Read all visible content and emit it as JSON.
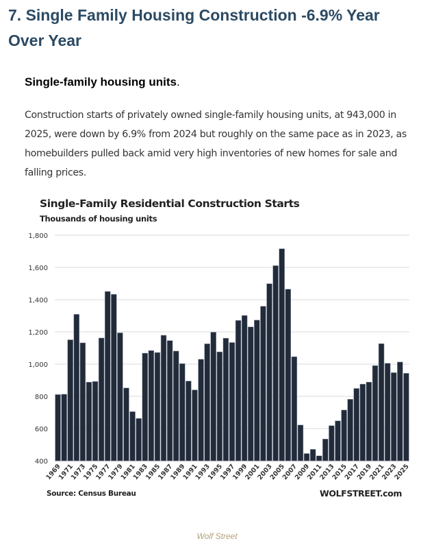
{
  "article": {
    "heading": "7. Single Family Housing Construction -6.9% Year Over Year",
    "subheading": "Single-family housing units",
    "subheading_punct": ".",
    "paragraph": "Construction starts of privately owned single-family housing units, at 943,000 in 2025, were down by 6.9% from 2024 but roughly on the same pace as in 2023, as homebuilders pulled back amid very high inventories of new homes for sale and falling prices.",
    "image_caption": "Wolf Street"
  },
  "colors": {
    "heading": "#2b4a63",
    "bar": "#222b3a",
    "gridline": "#d9d9d9",
    "caption": "#b3a07c"
  },
  "chart_data": {
    "type": "bar",
    "title": "Single-Family Residential Construction Starts",
    "subtitle": "Thousands of housing units",
    "xlabel": "",
    "ylabel": "Thousands of housing units",
    "ylim": [
      400,
      1800
    ],
    "yticks": [
      400,
      600,
      800,
      1000,
      1200,
      1400,
      1600,
      1800
    ],
    "ytick_labels": [
      "400",
      "600",
      "800",
      "1,000",
      "1,200",
      "1,400",
      "1,600",
      "1,800"
    ],
    "grid": true,
    "legend": "none",
    "source": "Source: Census Bureau",
    "brand": "WOLFSTREET.com",
    "categories": [
      1969,
      1970,
      1971,
      1972,
      1973,
      1974,
      1975,
      1976,
      1977,
      1978,
      1979,
      1980,
      1981,
      1982,
      1983,
      1984,
      1985,
      1986,
      1987,
      1988,
      1989,
      1990,
      1991,
      1992,
      1993,
      1994,
      1995,
      1996,
      1997,
      1998,
      1999,
      2000,
      2001,
      2002,
      2003,
      2004,
      2005,
      2006,
      2007,
      2008,
      2009,
      2010,
      2011,
      2012,
      2013,
      2014,
      2015,
      2016,
      2017,
      2018,
      2019,
      2020,
      2021,
      2022,
      2023,
      2024,
      2025
    ],
    "xtick_labels": [
      "1969",
      "1971",
      "1973",
      "1975",
      "1977",
      "1979",
      "1981",
      "1983",
      "1985",
      "1987",
      "1989",
      "1991",
      "1993",
      "1995",
      "1997",
      "1999",
      "2001",
      "2003",
      "2005",
      "2007",
      "2009",
      "2011",
      "2013",
      "2015",
      "2017",
      "2019",
      "2021",
      "2023",
      "2025"
    ],
    "values": [
      811,
      813,
      1151,
      1309,
      1132,
      888,
      892,
      1162,
      1451,
      1433,
      1194,
      852,
      705,
      663,
      1068,
      1084,
      1072,
      1179,
      1146,
      1081,
      1003,
      895,
      840,
      1030,
      1126,
      1198,
      1076,
      1161,
      1134,
      1271,
      1302,
      1231,
      1273,
      1359,
      1499,
      1611,
      1716,
      1465,
      1046,
      622,
      445,
      471,
      431,
      535,
      618,
      648,
      715,
      782,
      849,
      876,
      888,
      991,
      1127,
      1005,
      947,
      1013,
      943
    ]
  }
}
